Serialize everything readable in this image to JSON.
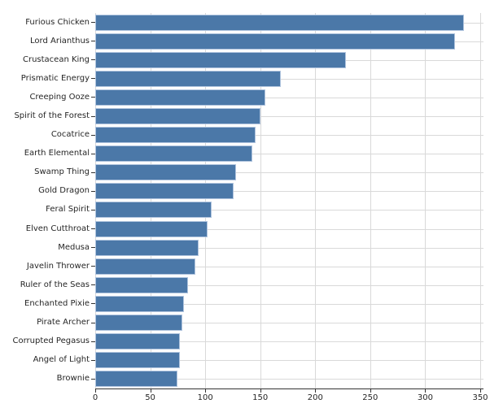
{
  "figure": {
    "background": "#ffffff"
  },
  "chart_data": {
    "type": "bar",
    "orientation": "horizontal",
    "title": "",
    "xlabel": "",
    "ylabel": "",
    "categories": [
      "Furious Chicken",
      "Lord Arianthus",
      "Crustacean King",
      "Prismatic Energy",
      "Creeping Ooze",
      "Spirit of the Forest",
      "Cocatrice",
      "Earth Elemental",
      "Swamp Thing",
      "Gold Dragon",
      "Feral Spirit",
      "Elven Cutthroat",
      "Medusa",
      "Javelin Thrower",
      "Ruler of the Seas",
      "Enchanted Pixie",
      "Pirate Archer",
      "Corrupted Pegasus",
      "Angel of Light",
      "Brownie"
    ],
    "values": [
      335,
      327,
      228,
      169,
      155,
      150,
      146,
      143,
      128,
      126,
      106,
      102,
      94,
      91,
      84,
      81,
      79,
      77,
      77,
      75
    ],
    "xlim": [
      0,
      350
    ],
    "xticks": [
      0,
      50,
      100,
      150,
      200,
      250,
      300,
      350
    ],
    "xtick_labels": [
      "0",
      "50",
      "100",
      "150",
      "200",
      "250",
      "300",
      "350"
    ],
    "grid": true,
    "legend": false,
    "colors": {
      "bar_fill": "#4b78a8",
      "bar_edge": "#b0c4de",
      "gridline": "#d9d9d9",
      "axis_line": "#333333",
      "text": "#262626"
    }
  }
}
